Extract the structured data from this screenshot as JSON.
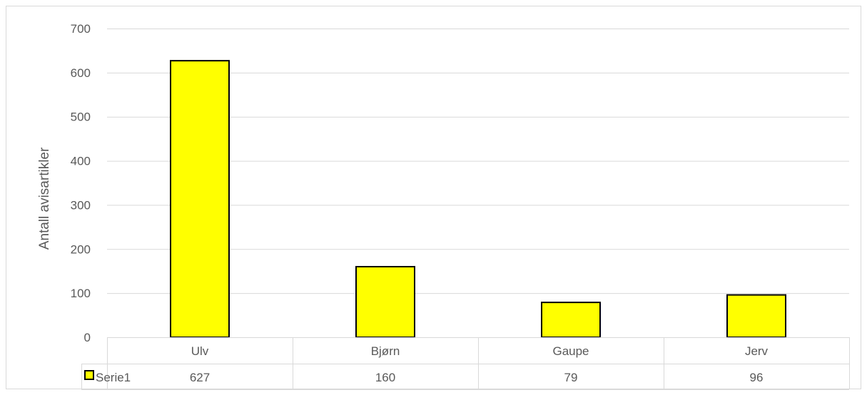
{
  "chart_data": {
    "type": "bar",
    "title": "",
    "xlabel": "",
    "ylabel": "Antall avisartikler",
    "categories": [
      "Ulv",
      "Bjørn",
      "Gaupe",
      "Jerv"
    ],
    "series": [
      {
        "name": "Serie1",
        "values": [
          627,
          160,
          79,
          96
        ]
      }
    ],
    "ylim": [
      0,
      700
    ],
    "yticks": [
      0,
      100,
      200,
      300,
      400,
      500,
      600,
      700
    ],
    "grid": true,
    "legend": "data-table",
    "data_table": true,
    "colors": {
      "bar_fill": "#FFFF00",
      "bar_stroke": "#000000",
      "grid": "#D9D9D9",
      "text": "#595959",
      "frame": "#D9D9D9"
    }
  }
}
